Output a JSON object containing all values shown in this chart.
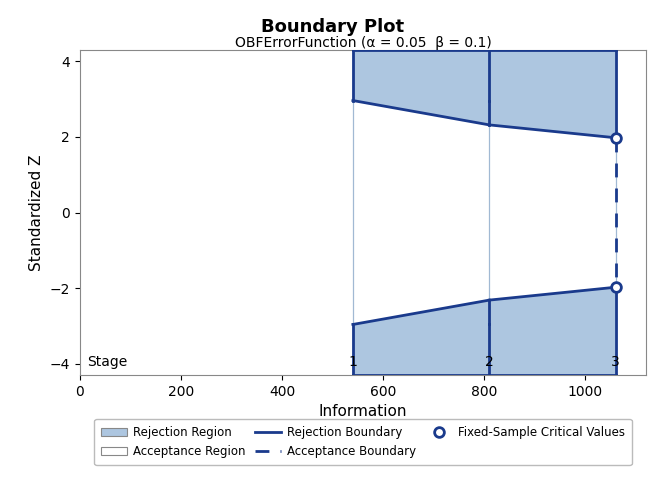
{
  "title": "Boundary Plot",
  "subtitle": "OBFErrorFunction (α = 0.05  β = 0.1)",
  "xlabel": "Information",
  "ylabel": "Standardized Z",
  "xlim": [
    0,
    1120
  ],
  "ylim": [
    -4.3,
    4.3
  ],
  "xticks": [
    0,
    200,
    400,
    600,
    800,
    1000
  ],
  "yticks": [
    -4,
    -2,
    0,
    2,
    4
  ],
  "stages": [
    540,
    810,
    1060
  ],
  "stage_labels": [
    "1",
    "2",
    "3"
  ],
  "stage1_upper": 2.963,
  "stage2_upper": 2.318,
  "stage3_upper": 1.977,
  "stage1_lower": -2.963,
  "stage2_lower": -2.318,
  "stage3_lower": -1.977,
  "fixed_sample_upper": 1.977,
  "fixed_sample_lower": -1.977,
  "fill_color": "#adc6e0",
  "boundary_color": "#1a3a8c",
  "stage_line_color": "#8aA8c8",
  "background_color": "#ffffff",
  "title_fontsize": 13,
  "subtitle_fontsize": 10,
  "axis_label_fontsize": 11,
  "tick_fontsize": 10
}
